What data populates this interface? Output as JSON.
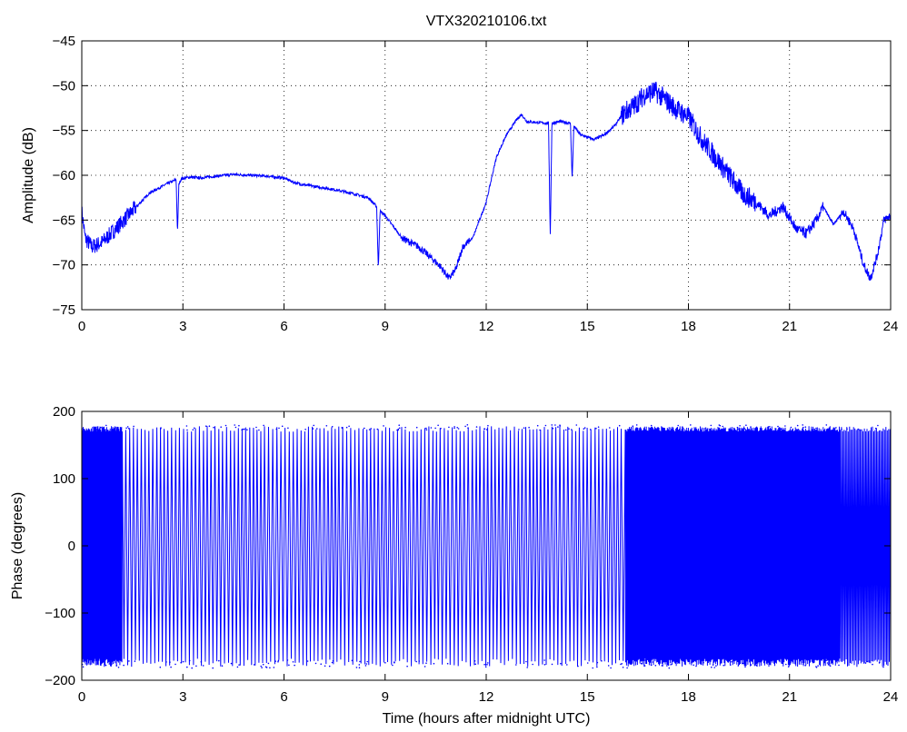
{
  "chart_data": [
    {
      "type": "line",
      "title": "VTX320210106.txt",
      "xlabel": "",
      "ylabel": "Amplitude (dB)",
      "xlim": [
        0,
        24
      ],
      "ylim": [
        -75,
        -45
      ],
      "xticks": [
        "0",
        "3",
        "6",
        "9",
        "12",
        "15",
        "18",
        "21",
        "24"
      ],
      "yticks": [
        "−45",
        "−50",
        "−55",
        "−60",
        "−65",
        "−70",
        "−75"
      ],
      "grid": true,
      "color": "#0000ff",
      "series": [
        {
          "x": [
            0.0,
            0.1,
            0.3,
            0.6,
            1.0,
            1.5,
            2.0,
            2.5,
            2.8,
            2.84,
            2.88,
            2.95,
            3.2,
            3.5,
            4.0,
            4.5,
            5.0,
            5.5,
            6.0,
            6.3,
            6.5,
            7.0,
            7.5,
            8.0,
            8.5,
            8.75,
            8.8,
            8.85,
            9.0,
            9.5,
            10.0,
            10.3,
            10.6,
            10.9,
            11.1,
            11.3,
            11.6,
            12.0,
            12.3,
            12.6,
            12.9,
            13.05,
            13.2,
            13.5,
            13.85,
            13.9,
            13.95,
            14.2,
            14.5,
            14.55,
            14.6,
            14.8,
            15.2,
            15.5,
            15.8,
            16.1,
            16.4,
            16.7,
            17.0,
            17.3,
            17.6,
            18.0,
            18.4,
            18.8,
            19.2,
            19.6,
            20.0,
            20.4,
            20.8,
            21.2,
            21.5,
            21.8,
            22.0,
            22.3,
            22.6,
            22.9,
            23.2,
            23.4,
            23.6,
            23.8,
            24.0
          ],
          "y": [
            -64,
            -67,
            -68,
            -67.5,
            -66,
            -64,
            -62,
            -61,
            -60.5,
            -66.5,
            -61,
            -60.4,
            -60.2,
            -60.3,
            -60.1,
            -59.9,
            -60,
            -60.1,
            -60.3,
            -60.8,
            -61,
            -61.3,
            -61.6,
            -62,
            -62.5,
            -63.5,
            -70.5,
            -64,
            -64.5,
            -67,
            -68,
            -69,
            -70,
            -71.5,
            -70.5,
            -68,
            -67,
            -63,
            -58,
            -55.5,
            -53.8,
            -53.2,
            -54,
            -54.1,
            -54.2,
            -67,
            -54.2,
            -54,
            -54.2,
            -60.5,
            -54.5,
            -55.5,
            -56,
            -55.5,
            -54.5,
            -53,
            -52.2,
            -51,
            -50.6,
            -51.5,
            -52.5,
            -53.5,
            -56,
            -58,
            -60,
            -62,
            -63,
            -64.5,
            -63.5,
            -66,
            -66.5,
            -65,
            -63.5,
            -65.5,
            -64,
            -66,
            -70,
            -71.5,
            -69,
            -65,
            -64.5
          ]
        }
      ]
    },
    {
      "type": "line",
      "title": "",
      "xlabel": "Time (hours after midnight UTC)",
      "ylabel": "Phase (degrees)",
      "xlim": [
        0,
        24
      ],
      "ylim": [
        -200,
        200
      ],
      "xticks": [
        "0",
        "3",
        "6",
        "9",
        "12",
        "15",
        "18",
        "21",
        "24"
      ],
      "yticks": [
        "200",
        "100",
        "0",
        "−100",
        "−200"
      ],
      "grid": false,
      "color": "#0000ff",
      "series": [
        {
          "x": [
            0.0,
            1.2,
            1.2,
            16.0,
            16.0,
            24.0
          ],
          "y": [
            180,
            180,
            180,
            180,
            180,
            180
          ]
        }
      ]
    }
  ]
}
